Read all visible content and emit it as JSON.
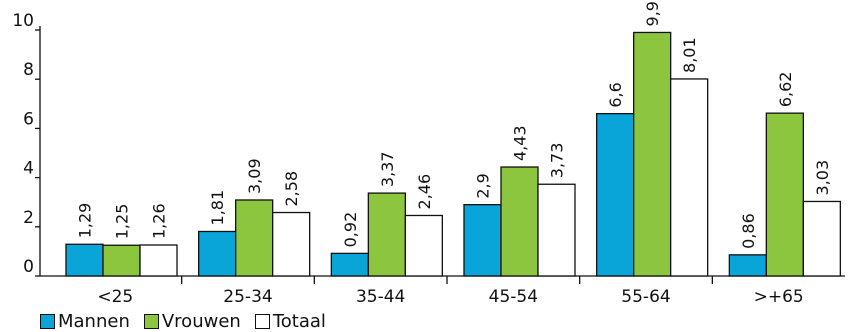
{
  "chart_data": {
    "type": "bar",
    "categories": [
      "<25",
      "25-34",
      "35-44",
      "45-54",
      "55-64",
      ">+65"
    ],
    "series": [
      {
        "name": "Mannen",
        "values": [
          1.29,
          1.81,
          0.92,
          2.9,
          6.6,
          0.86
        ],
        "labels": [
          "1,29",
          "1,81",
          "0,92",
          "2,9",
          "6,6",
          "0,86"
        ],
        "color": "#0aa5d8"
      },
      {
        "name": "Vrouwen",
        "values": [
          1.25,
          3.09,
          3.37,
          4.43,
          9.9,
          6.62
        ],
        "labels": [
          "1,25",
          "3,09",
          "3,37",
          "4,43",
          "9,9",
          "6,62"
        ],
        "color": "#8cc63f"
      },
      {
        "name": "Totaal",
        "values": [
          1.26,
          2.58,
          2.46,
          3.73,
          8.01,
          3.03
        ],
        "labels": [
          "1,26",
          "2,58",
          "2,46",
          "3,73",
          "8,01",
          "3,03"
        ],
        "color": "#ffffff"
      }
    ],
    "ylim": [
      0,
      10
    ],
    "yticks": [
      0,
      2,
      4,
      6,
      8,
      10
    ],
    "title": "",
    "xlabel": "",
    "ylabel": "",
    "grid": false,
    "legend_position": "bottom-left"
  }
}
